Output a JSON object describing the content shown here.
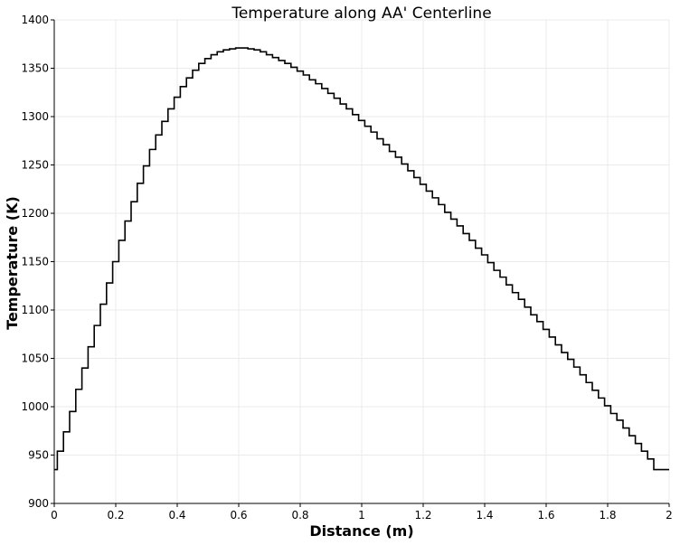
{
  "chart_data": {
    "type": "line",
    "title": "Temperature along AA' Centerline",
    "xlabel": "Distance (m)",
    "ylabel": "Temperature (K)",
    "xlim": [
      0,
      2
    ],
    "ylim": [
      900,
      1400
    ],
    "x_ticks": [
      "0",
      "0.2",
      "0.4",
      "0.6",
      "0.8",
      "1",
      "1.2",
      "1.4",
      "1.6",
      "1.8",
      "2"
    ],
    "y_ticks": [
      "900",
      "950",
      "1000",
      "1050",
      "1100",
      "1150",
      "1200",
      "1250",
      "1300",
      "1350",
      "1400"
    ],
    "grid": true,
    "legend": "none",
    "line_color": "#000000",
    "grid_color": "#ebebeb",
    "series": [
      {
        "x": [
          0,
          0.02,
          0.04,
          0.06,
          0.08,
          0.1,
          0.12,
          0.14,
          0.16,
          0.18,
          0.2,
          0.22,
          0.24,
          0.26,
          0.28,
          0.3,
          0.32,
          0.34,
          0.36,
          0.38,
          0.4,
          0.42,
          0.44,
          0.46,
          0.48,
          0.5,
          0.52,
          0.54,
          0.56,
          0.58,
          0.6,
          0.62,
          0.64,
          0.66,
          0.68,
          0.7,
          0.72,
          0.74,
          0.76,
          0.78,
          0.8,
          0.82,
          0.84,
          0.86,
          0.88,
          0.9,
          0.92,
          0.94,
          0.96,
          0.98,
          1.0,
          1.02,
          1.04,
          1.06,
          1.08,
          1.1,
          1.12,
          1.14,
          1.16,
          1.18,
          1.2,
          1.22,
          1.24,
          1.26,
          1.28,
          1.3,
          1.32,
          1.34,
          1.36,
          1.38,
          1.4,
          1.42,
          1.44,
          1.46,
          1.48,
          1.5,
          1.52,
          1.54,
          1.56,
          1.58,
          1.6,
          1.62,
          1.64,
          1.66,
          1.68,
          1.7,
          1.72,
          1.74,
          1.76,
          1.78,
          1.8,
          1.82,
          1.84,
          1.86,
          1.88,
          1.9,
          1.92,
          1.94,
          1.96,
          1.98,
          2.0
        ],
        "y": [
          935,
          954,
          974,
          995,
          1018,
          1040,
          1062,
          1084,
          1106,
          1128,
          1150,
          1172,
          1192,
          1212,
          1231,
          1249,
          1266,
          1281,
          1295,
          1308,
          1320,
          1331,
          1340,
          1348,
          1355,
          1360,
          1364,
          1367,
          1369,
          1370,
          1371,
          1371,
          1370,
          1369,
          1367,
          1364,
          1361,
          1358,
          1355,
          1351,
          1347,
          1343,
          1338,
          1334,
          1329,
          1324,
          1319,
          1313,
          1308,
          1302,
          1296,
          1290,
          1284,
          1277,
          1271,
          1264,
          1258,
          1251,
          1244,
          1237,
          1230,
          1223,
          1216,
          1209,
          1201,
          1194,
          1187,
          1179,
          1172,
          1164,
          1157,
          1149,
          1141,
          1134,
          1126,
          1118,
          1111,
          1103,
          1095,
          1088,
          1080,
          1072,
          1064,
          1056,
          1049,
          1041,
          1033,
          1025,
          1017,
          1009,
          1001,
          993,
          986,
          978,
          970,
          962,
          954,
          946,
          935,
          935,
          935
        ]
      }
    ]
  }
}
